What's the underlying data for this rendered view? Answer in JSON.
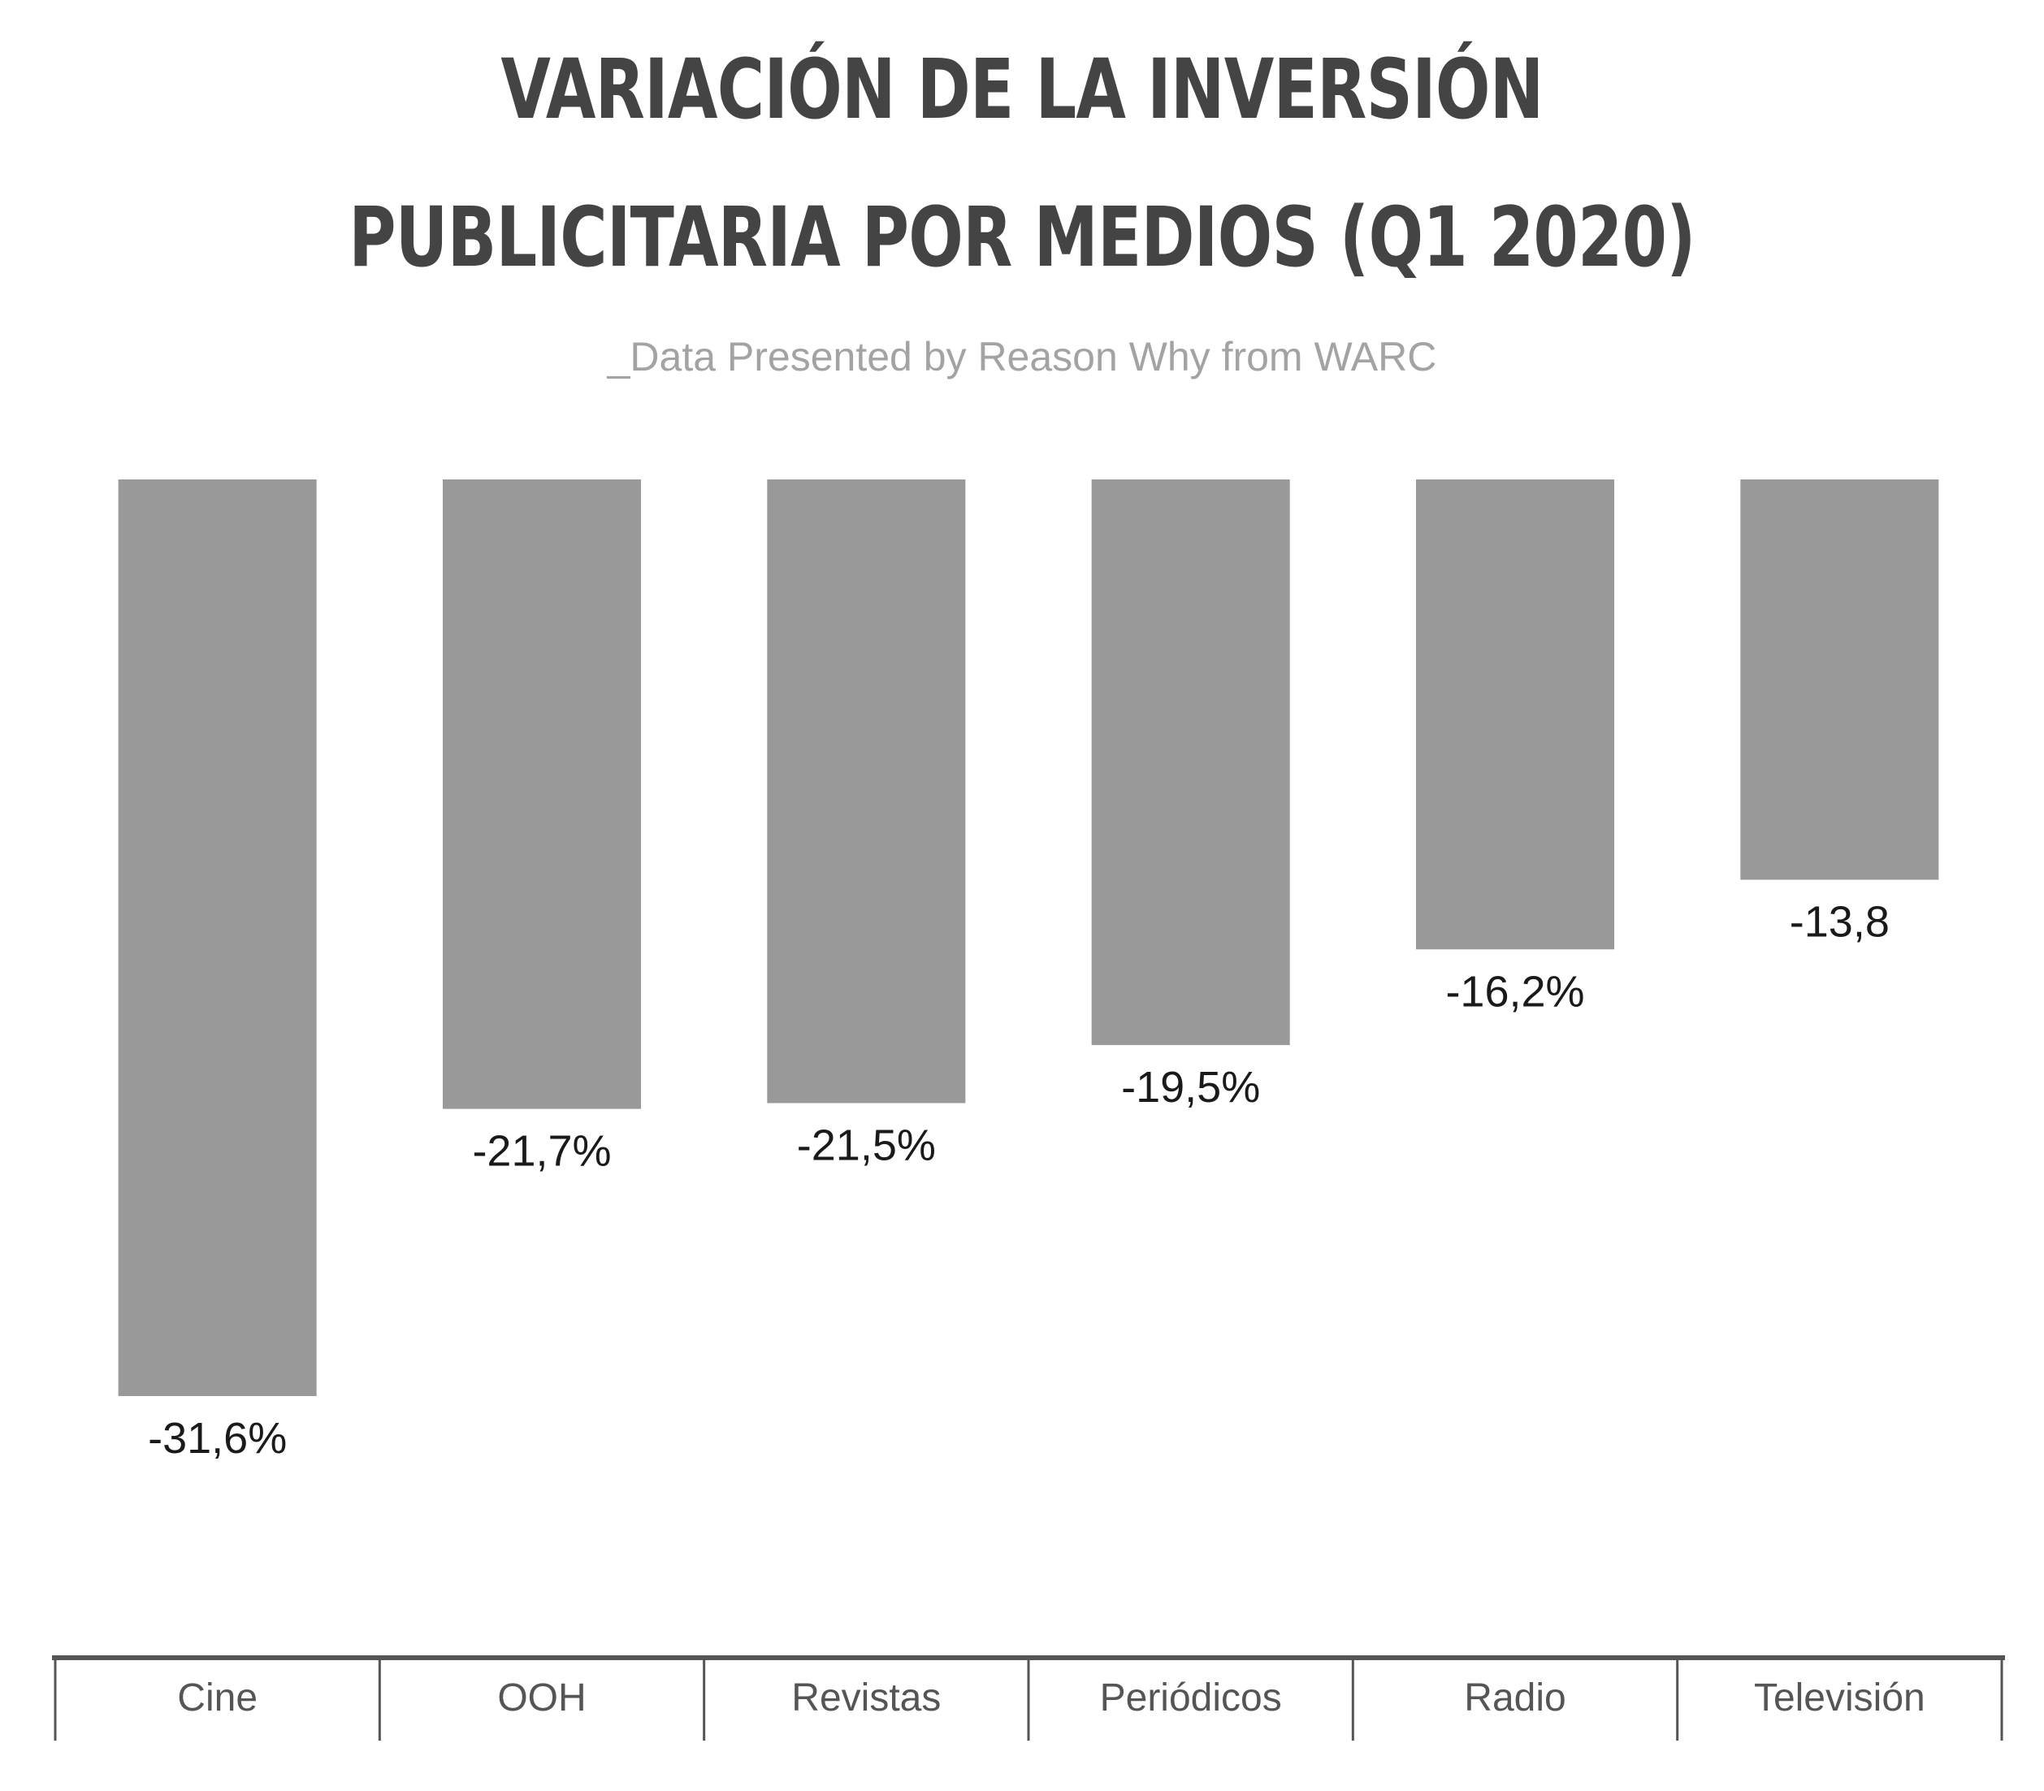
{
  "chart_data": {
    "type": "bar",
    "title": "VARIACIÓN DE LA INVERSIÓN PUBLICITARIA POR MEDIOS (Q1 2020)",
    "subtitle": "_Data Presented by Reason Why from WARC",
    "categories": [
      "Cine",
      "OOH",
      "Revistas",
      "Periódicos",
      "Radio",
      "Televisión"
    ],
    "values": [
      -31.6,
      -21.7,
      -21.5,
      -19.5,
      -16.2,
      -13.8
    ],
    "data_labels": [
      "-31,6%",
      "-21,7%",
      "-21,5%",
      "-19,5%",
      "-16,2%",
      "-13,8"
    ],
    "xlabel": "",
    "ylabel": "",
    "ylim": [
      -31.6,
      0
    ],
    "grid": false,
    "legend": "none",
    "bar_color": "#999999"
  }
}
